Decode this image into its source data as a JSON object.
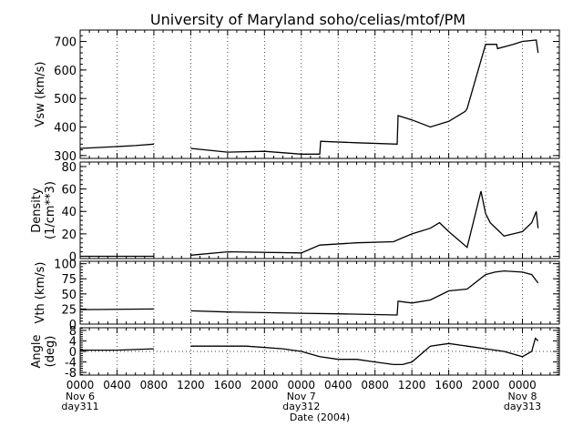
{
  "title": "University of Maryland  soho/celias/mtof/PM",
  "chart_data": [
    {
      "type": "line",
      "ylabel": "Vsw (km/s)",
      "ylim": [
        290,
        740
      ],
      "yticks": [
        300,
        400,
        500,
        600,
        700
      ],
      "x_hours": [
        0,
        3,
        6,
        8,
        8.1,
        12,
        16,
        20,
        24,
        26,
        26.1,
        30,
        34.4,
        34.5,
        36,
        38,
        40,
        41.8,
        42,
        44,
        45.2,
        45.3,
        47,
        48,
        49.5,
        49.7
      ],
      "values": [
        325,
        330,
        335,
        340,
        null,
        325,
        312,
        315,
        305,
        305,
        350,
        345,
        340,
        440,
        425,
        400,
        420,
        455,
        465,
        690,
        690,
        675,
        690,
        700,
        705,
        660
      ]
    },
    {
      "type": "line",
      "ylabel": "Density\n(1/cm**3)",
      "ylim": [
        -2,
        84
      ],
      "yticks": [
        0,
        20,
        40,
        60,
        80
      ],
      "x_hours": [
        0,
        8,
        8.1,
        12,
        16,
        24,
        26,
        30,
        34,
        36,
        38,
        39,
        40,
        41,
        42,
        43.5,
        44,
        44.5,
        45.5,
        46,
        47,
        48,
        49,
        49.5,
        49.7
      ],
      "values": [
        0,
        0,
        null,
        1,
        4,
        3,
        10,
        12,
        13,
        20,
        25,
        30,
        22,
        15,
        8,
        58,
        38,
        30,
        22,
        18,
        20,
        22,
        30,
        40,
        25
      ]
    },
    {
      "type": "line",
      "ylabel": "Vth (km/s)",
      "ylim": [
        0,
        104
      ],
      "yticks": [
        0,
        25,
        50,
        75,
        100
      ],
      "x_hours": [
        0,
        8,
        8.1,
        12,
        16,
        20,
        24,
        28,
        34.4,
        34.5,
        36,
        38,
        40,
        42,
        44,
        45,
        46,
        48,
        49,
        49.7
      ],
      "values": [
        24,
        25,
        null,
        22,
        20,
        19,
        18,
        17,
        15,
        38,
        35,
        40,
        55,
        58,
        82,
        86,
        88,
        86,
        82,
        68
      ]
    },
    {
      "type": "line",
      "ylabel": "Angle\n(deg)",
      "ylim": [
        -9,
        9
      ],
      "yticks": [
        -8,
        -4,
        0,
        4,
        8
      ],
      "x_hours": [
        0,
        4,
        8,
        8.1,
        12,
        14,
        16,
        18,
        22,
        24,
        26,
        28,
        30,
        32,
        34,
        35,
        36,
        38,
        40,
        42,
        44,
        46,
        48,
        49,
        49.4,
        49.7
      ],
      "values": [
        0.5,
        0.5,
        1,
        null,
        2,
        2,
        2,
        2,
        1,
        0,
        -2,
        -3,
        -3,
        -4,
        -5,
        -5,
        -4,
        2,
        3,
        2,
        1,
        0,
        -2,
        0,
        5,
        4
      ],
      "dotted_zero": true
    }
  ],
  "x_axis": {
    "tick_labels": [
      "0000",
      "0400",
      "0800",
      "1200",
      "1600",
      "2000",
      "0000",
      "0400",
      "0800",
      "1200",
      "1600",
      "2000",
      "0000"
    ],
    "date_labels": [
      {
        "lines": [
          "Nov 6",
          "day311"
        ],
        "hour": 0
      },
      {
        "lines": [
          "Nov 7",
          "day312"
        ],
        "hour": 24
      },
      {
        "lines": [
          "Nov 8",
          "day313"
        ],
        "hour": 48
      }
    ],
    "title": "Date (2004)",
    "xlim_hours": [
      0,
      52
    ]
  },
  "colors": {
    "line": "#000000",
    "background": "#ffffff"
  }
}
